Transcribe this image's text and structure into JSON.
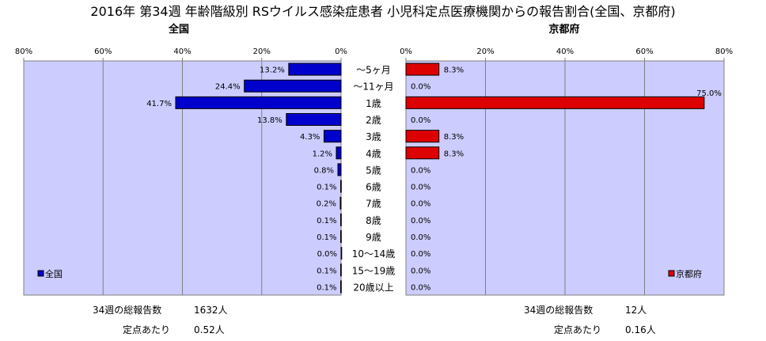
{
  "chart_data": {
    "type": "bar",
    "title": "2016年 第34週 年齢階級別 RSウイルス感染症患者 小児科定点医療機関からの報告割合(全国、京都府)",
    "categories": [
      "〜5ヶ月",
      "〜11ヶ月",
      "1歳",
      "2歳",
      "3歳",
      "4歳",
      "5歳",
      "6歳",
      "7歳",
      "8歳",
      "9歳",
      "10〜14歳",
      "15〜19歳",
      "20歳以上"
    ],
    "xlim": [
      0,
      80
    ],
    "ticks": [
      "80%",
      "60%",
      "40%",
      "20%",
      "0%"
    ],
    "ticks_right": [
      "0%",
      "20%",
      "40%",
      "60%",
      "80%"
    ],
    "series": [
      {
        "name": "全国",
        "panel_title": "全国",
        "color": "#0000cc",
        "values": [
          13.2,
          24.4,
          41.7,
          13.8,
          4.3,
          1.2,
          0.8,
          0.1,
          0.2,
          0.1,
          0.1,
          0.0,
          0.1,
          0.1
        ],
        "labels": [
          "13.2%",
          "24.4%",
          "41.7%",
          "13.8%",
          "4.3%",
          "1.2%",
          "0.8%",
          "0.1%",
          "0.2%",
          "0.1%",
          "0.1%",
          "0.0%",
          "0.1%",
          "0.1%"
        ]
      },
      {
        "name": "京都府",
        "panel_title": "京都府",
        "color": "#dd0000",
        "values": [
          8.3,
          0.0,
          75.0,
          0.0,
          8.3,
          8.3,
          0.0,
          0.0,
          0.0,
          0.0,
          0.0,
          0.0,
          0.0,
          0.0
        ],
        "labels": [
          "8.3%",
          "0.0%",
          "75.0%",
          "0.0%",
          "8.3%",
          "8.3%",
          "0.0%",
          "0.0%",
          "0.0%",
          "0.0%",
          "0.0%",
          "0.0%",
          "0.0%",
          "0.0%"
        ]
      }
    ],
    "plot_bg": "#ccccff",
    "grid": true,
    "legend_placement": "bottom-inside"
  },
  "footer": {
    "left": {
      "total_label": "34週の総報告数",
      "total_value": "1632人",
      "per_label": "定点あたり",
      "per_value": "0.52人"
    },
    "right": {
      "total_label": "34週の総報告数",
      "total_value": "12人",
      "per_label": "定点あたり",
      "per_value": "0.16人"
    }
  }
}
